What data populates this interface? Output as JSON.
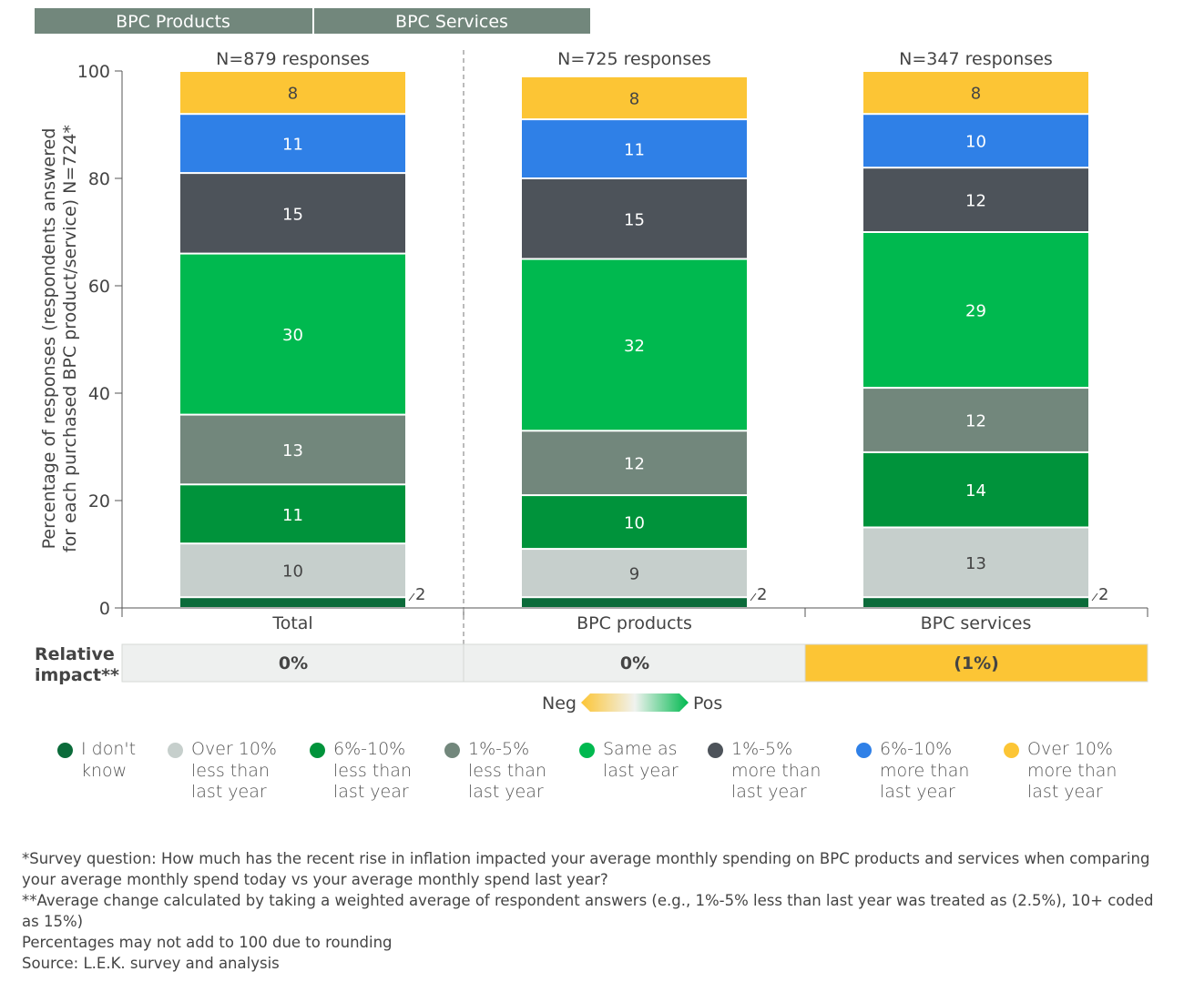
{
  "header_tabs": [
    "BPC Products",
    "BPC Services"
  ],
  "chart_data": {
    "type": "bar",
    "stacked": true,
    "ylabel": "Percentage of responses (respondents answered\nfor each purchased BPC product/service) N=724*",
    "ylim": [
      0,
      100
    ],
    "yticks": [
      0,
      20,
      40,
      60,
      80,
      100
    ],
    "categories": [
      "Total",
      "BPC products",
      "BPC services"
    ],
    "category_notes": [
      "N=879 responses",
      "N=725 responses",
      "N=347 responses"
    ],
    "series": [
      {
        "name": "I don't know",
        "color": "#0b6b3a",
        "values": [
          2,
          2,
          2
        ]
      },
      {
        "name": "Over 10% less than last year",
        "color": "#c6cfcc",
        "values": [
          10,
          9,
          13
        ]
      },
      {
        "name": "6%-10% less than last year",
        "color": "#00933b",
        "values": [
          11,
          10,
          14
        ]
      },
      {
        "name": "1%-5% less than last year",
        "color": "#72877c",
        "values": [
          13,
          12,
          12
        ]
      },
      {
        "name": "Same as last year",
        "color": "#00b94f",
        "values": [
          30,
          32,
          29
        ]
      },
      {
        "name": "1%-5% more than last year",
        "color": "#4d535a",
        "values": [
          15,
          15,
          12
        ]
      },
      {
        "name": "6%-10% more than last year",
        "color": "#2f80e7",
        "values": [
          11,
          11,
          10
        ]
      },
      {
        "name": "Over 10% more than last year",
        "color": "#fcc535",
        "values": [
          8,
          8,
          8
        ]
      }
    ],
    "grid": false,
    "legend_position": "bottom"
  },
  "relative_impact": {
    "label": "Relative\nimpact**",
    "values": [
      "0%",
      "0%",
      "(1%)"
    ],
    "colors": [
      "#eef0ef",
      "#eef0ef",
      "#fcc535"
    ],
    "scale_neg": "Neg",
    "scale_pos": "Pos"
  },
  "legend": [
    "I don't\nknow",
    "Over 10%\nless than\nlast year",
    "6%-10%\nless than\nlast year",
    "1%-5%\nless than\nlast year",
    "Same as\nlast year",
    "1%-5%\nmore than\nlast year",
    "6%-10%\nmore than\nlast year",
    "Over 10%\nmore than\nlast year"
  ],
  "footnotes": [
    "*Survey question: How much has the recent rise in inflation impacted your average monthly spending on BPC products and services when comparing your average monthly spend today vs your average monthly spend last year?",
    "**Average change calculated by taking a weighted average of respondent answers (e.g., 1%-5% less than last year was treated as (2.5%), 10+ coded as 15%)",
    "Percentages may not add to 100 due to rounding",
    "Source: L.E.K. survey and analysis"
  ]
}
